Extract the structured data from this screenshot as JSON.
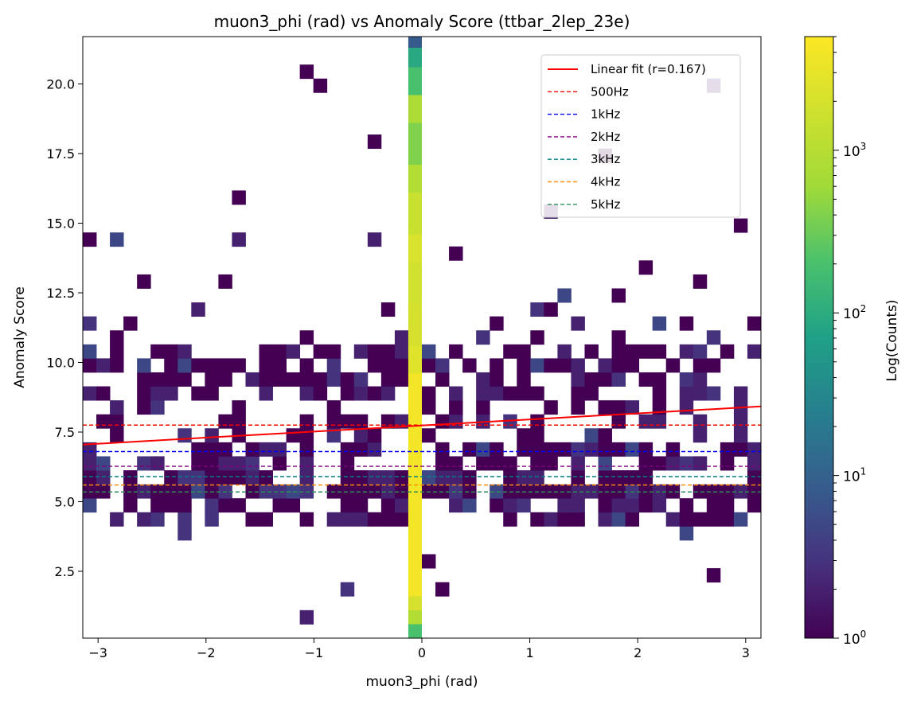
{
  "chart_data": {
    "type": "heatmap",
    "title": "muon3_phi (rad) vs Anomaly Score (ttbar_2lep_23e)",
    "xlabel": "muon3_phi (rad)",
    "ylabel": "Anomaly Score",
    "xlim": [
      -3.1416,
      3.1416
    ],
    "ylim": [
      0.1,
      21.7
    ],
    "xticks": [
      -3,
      -2,
      -1,
      0,
      1,
      2,
      3
    ],
    "xtick_labels": [
      "−3",
      "−2",
      "−1",
      "0",
      "1",
      "2",
      "3"
    ],
    "yticks": [
      2.5,
      5.0,
      7.5,
      10.0,
      12.5,
      15.0,
      17.5,
      20.0
    ],
    "ytick_labels": [
      "2.5",
      "5.0",
      "7.5",
      "10.0",
      "12.5",
      "15.0",
      "17.5",
      "20.0"
    ],
    "grid": false,
    "colorbar": {
      "label": "Log(Counts)",
      "scale": "log",
      "range": [
        1,
        5000
      ],
      "tick_labels": [
        {
          "base": "10",
          "exp": "0",
          "value": 1
        },
        {
          "base": "10",
          "exp": "1",
          "value": 10
        },
        {
          "base": "10",
          "exp": "2",
          "value": 100
        },
        {
          "base": "10",
          "exp": "3",
          "value": 1000
        }
      ]
    },
    "bins": {
      "nx": 50,
      "ny": 43,
      "dense_column": {
        "x_range": [
          -0.126,
          0.0
        ],
        "cells": [
          {
            "y0": 0.1,
            "y1": 0.6,
            "count": 200
          },
          {
            "y0": 0.6,
            "y1": 1.1,
            "count": 900
          },
          {
            "y0": 1.1,
            "y1": 1.6,
            "count": 2000
          },
          {
            "y0": 1.6,
            "y1": 9.6,
            "count": 4000
          },
          {
            "y0": 9.6,
            "y1": 10.6,
            "count": 2600
          },
          {
            "y0": 10.6,
            "y1": 12.1,
            "count": 2000
          },
          {
            "y0": 12.1,
            "y1": 13.6,
            "count": 1800
          },
          {
            "y0": 13.6,
            "y1": 14.6,
            "count": 2200
          },
          {
            "y0": 14.6,
            "y1": 16.1,
            "count": 1500
          },
          {
            "y0": 16.1,
            "y1": 17.1,
            "count": 900
          },
          {
            "y0": 17.1,
            "y1": 18.6,
            "count": 400
          },
          {
            "y0": 18.6,
            "y1": 19.6,
            "count": 800
          },
          {
            "y0": 19.6,
            "y1": 20.6,
            "count": 200
          },
          {
            "y0": 20.6,
            "y1": 21.3,
            "count": 90
          },
          {
            "y0": 21.3,
            "y1": 21.7,
            "count": 8
          }
        ]
      }
    },
    "series": [
      {
        "name": "Linear fit (r=0.167)",
        "kind": "line",
        "color": "#ff0000",
        "x": [
          -3.1416,
          3.1416
        ],
        "y": [
          7.05,
          8.42
        ]
      },
      {
        "name": "500Hz",
        "kind": "hline",
        "color": "#ff0000",
        "y": 7.75
      },
      {
        "name": "1kHz",
        "kind": "hline",
        "color": "#0000ff",
        "y": 6.8
      },
      {
        "name": "2kHz",
        "kind": "hline",
        "color": "#800080",
        "y": 6.27
      },
      {
        "name": "3kHz",
        "kind": "hline",
        "color": "#008080",
        "y": 5.9
      },
      {
        "name": "4kHz",
        "kind": "hline",
        "color": "#ff8c00",
        "y": 5.6
      },
      {
        "name": "5kHz",
        "kind": "hline",
        "color": "#2e8b57",
        "y": 5.35
      }
    ],
    "legend_placement": "top-right"
  }
}
